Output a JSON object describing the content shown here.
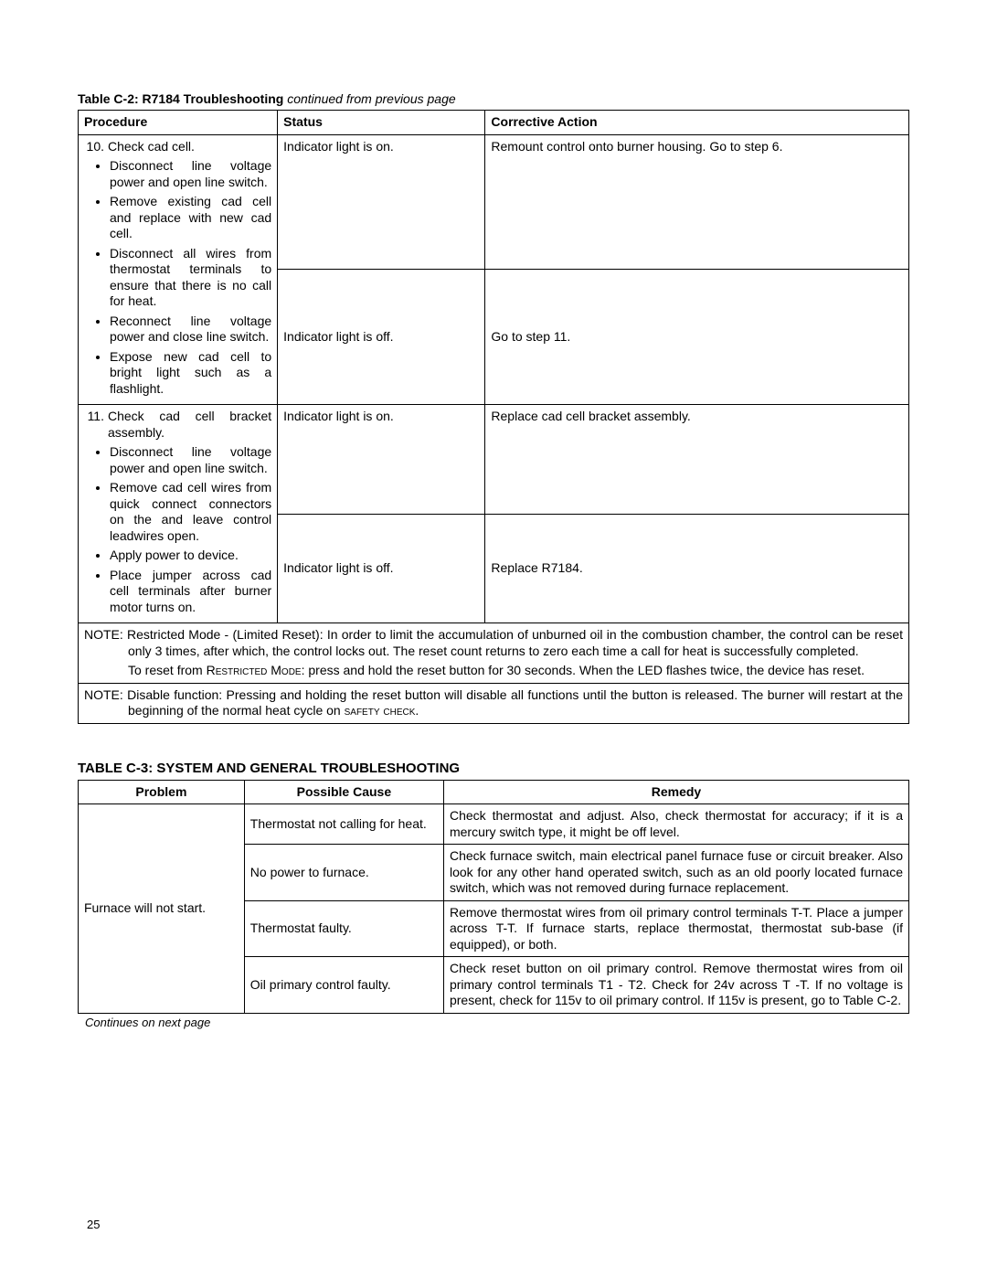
{
  "tableC2": {
    "caption_bold": "Table C-2:  R7184 Troubleshooting ",
    "caption_ital": "continued from previous page",
    "headers": {
      "procedure": "Procedure",
      "status": "Status",
      "action": "Corrective Action"
    },
    "row10": {
      "num": "10.",
      "lead": "Check cad cell.",
      "bullets": [
        "Disconnect line voltage power and open line switch.",
        "Remove existing cad cell and replace with new cad cell.",
        "Disconnect all wires from thermostat terminals to ensure that there is no call for heat.",
        "Reconnect line voltage power and close line switch.",
        "Expose new cad cell to bright light such as a flashlight."
      ],
      "status_a": "Indicator light is on.",
      "action_a": "Remount control onto burner housing. Go to step 6.",
      "status_b": "Indicator light is off.",
      "action_b": "Go to step 11."
    },
    "row11": {
      "num": "11.",
      "lead": "Check cad cell bracket assembly.",
      "bullets": [
        "Disconnect line voltage power and open line switch.",
        "Remove cad cell wires from quick connect connectors on the  and leave control leadwires open.",
        "Apply power to device.",
        "Place jumper across cad cell terminals after burner motor turns on."
      ],
      "status_a": "Indicator light is on.",
      "action_a": "Replace cad cell bracket assembly.",
      "status_b": "Indicator light is off.",
      "action_b": "Replace R7184."
    },
    "note1_a": "NOTE: Restricted Mode - (Limited Reset): In order to limit the accumulation of unburned oil in the combustion chamber, the control can be reset only 3 times, after which, the control locks out. The reset count returns to zero each time a call for heat is successfully completed.",
    "note1_b_pre": "To reset from ",
    "note1_b_sc": "Restricted Mode",
    "note1_b_post": ": press and hold the reset button for 30 seconds. When the LED flashes twice, the device has reset.",
    "note2_pre": "NOTE: Disable function: Pressing and holding the reset button will disable all functions until the button is released. The burner will restart at the beginning of the normal heat cycle on ",
    "note2_sc": "safety check",
    "note2_post": "."
  },
  "tableC3": {
    "title": "TABLE C-3:  SYSTEM AND GENERAL TROUBLESHOOTING",
    "headers": {
      "problem": "Problem",
      "cause": "Possible Cause",
      "remedy": "Remedy"
    },
    "problem": "Furnace will not start.",
    "rows": [
      {
        "cause": "Thermostat not calling for heat.",
        "remedy": "Check thermostat and adjust. Also, check thermostat for accuracy; if it is a mercury switch type, it might be off level."
      },
      {
        "cause": "No power to furnace.",
        "remedy": "Check furnace switch, main electrical panel furnace fuse or circuit breaker. Also look for any other hand operated switch, such as an old poorly located furnace switch, which was not removed during furnace replacement."
      },
      {
        "cause": "Thermostat faulty.",
        "remedy": "Remove thermostat wires from oil primary control terminals T-T. Place a jumper across T-T. If furnace starts, replace thermostat, thermostat sub-base (if equipped), or both."
      },
      {
        "cause": "Oil primary control faulty.",
        "remedy": "Check reset button on oil primary control. Remove thermostat wires from oil primary control terminals T1 - T2. Check for 24v across T -T. If no voltage is present, check for 115v to oil primary control. If 115v is present, go to Table C-2."
      }
    ],
    "continues": "Continues on next page"
  },
  "pageNumber": "25"
}
